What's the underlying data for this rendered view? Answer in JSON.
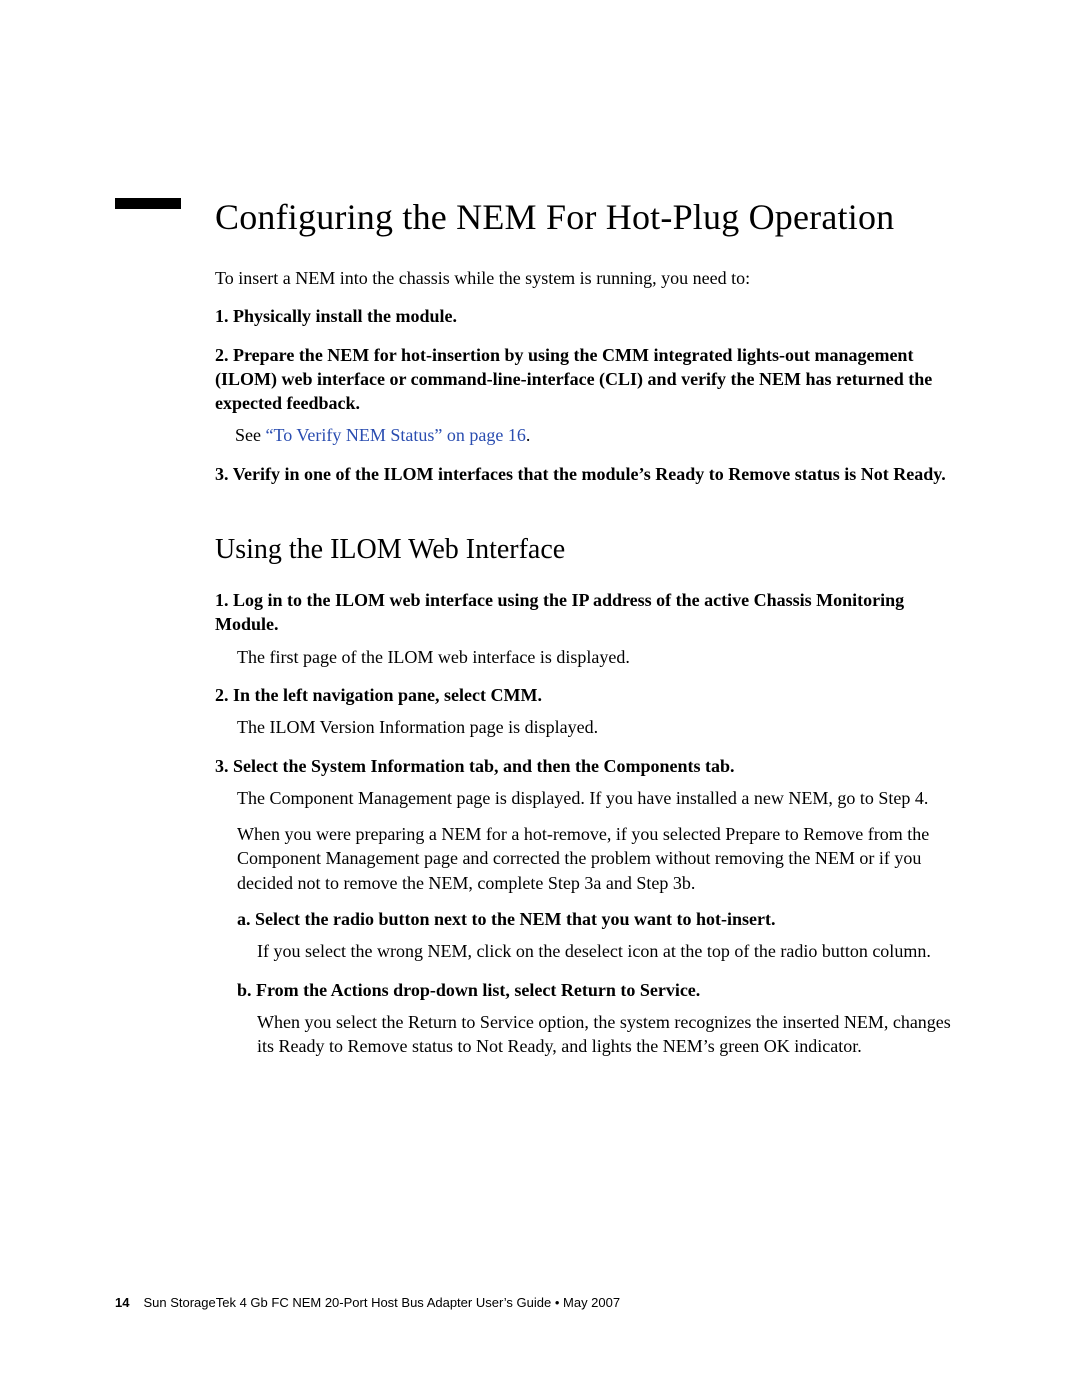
{
  "heading": "Configuring the NEM For Hot-Plug Operation",
  "intro": "To insert a NEM into the chassis while the system is running, you need to:",
  "main_steps": {
    "s1": "Physically install the module.",
    "s2": "Prepare the NEM for hot-insertion by using the CMM integrated lights-out management (ILOM) web interface or command-line-interface (CLI) and verify the NEM has returned the expected feedback.",
    "see_prefix": "See ",
    "see_link": "“To Verify NEM Status” on page 16",
    "see_suffix": ".",
    "s3": "Verify in one of the ILOM interfaces that the module’s Ready to Remove status is Not Ready."
  },
  "subheading": "Using the ILOM Web Interface",
  "web_steps": {
    "w1": {
      "head": "Log in to the ILOM web interface using the IP address of the active Chassis Monitoring Module.",
      "desc": "The first page of the ILOM web interface is displayed."
    },
    "w2": {
      "head": "In the left navigation pane, select CMM.",
      "desc": "The ILOM Version Information page is displayed."
    },
    "w3": {
      "head": "Select the System Information tab, and then the Components tab.",
      "desc": "The Component Management page is displayed. If you have installed a new NEM, go to Step 4.",
      "desc2": "When you were preparing a NEM for a hot-remove, if you selected Prepare to Remove from the Component Management page and corrected the problem without removing the NEM or if you decided not to remove the NEM, complete Step 3a and Step 3b.",
      "a": {
        "head": "Select the radio button next to the NEM that you want to hot-insert.",
        "desc": "If you select the wrong NEM, click on the deselect icon at the top of the radio button column."
      },
      "b": {
        "head": "From the Actions drop-down list, select Return to Service.",
        "desc": "When you select the Return to Service option, the system recognizes the inserted NEM, changes its Ready to Remove status to Not Ready, and lights the NEM’s green OK indicator."
      }
    }
  },
  "footer": {
    "page_number": "14",
    "text": "Sun StorageTek 4 Gb FC NEM 20-Port Host Bus Adapter User’s Guide • May 2007"
  }
}
